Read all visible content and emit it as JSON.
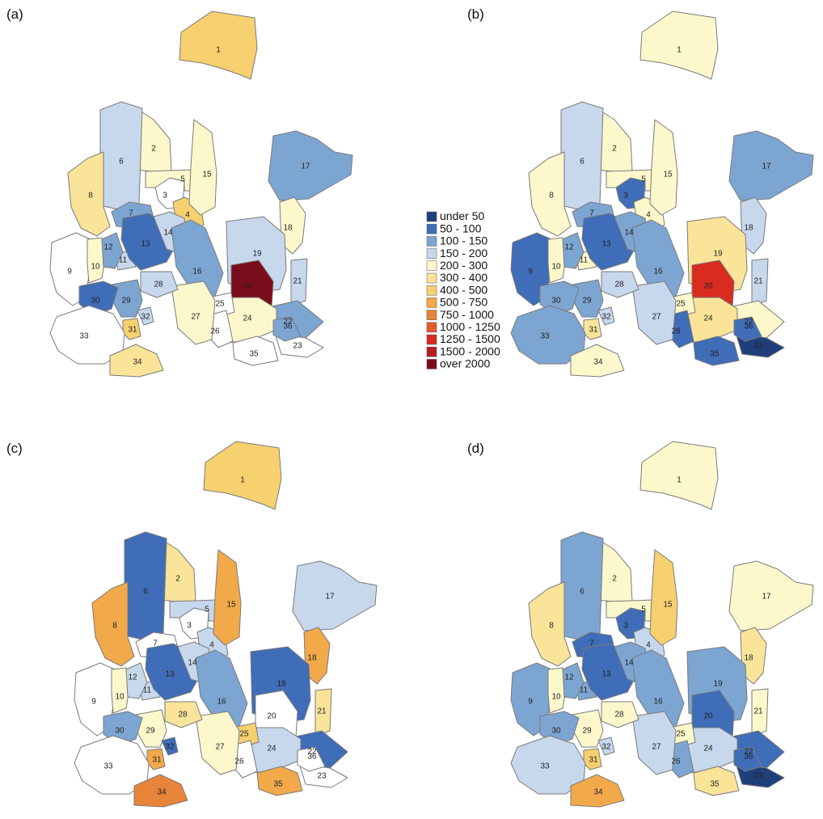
{
  "legend": {
    "classes": [
      {
        "label": "under 50",
        "color": "#1f3f7a"
      },
      {
        "label": "50 - 100",
        "color": "#3f6db8"
      },
      {
        "label": "100 - 150",
        "color": "#7da5d2"
      },
      {
        "label": "150 - 200",
        "color": "#c7d7ec"
      },
      {
        "label": "200 - 300",
        "color": "#fdf8cc"
      },
      {
        "label": "300 - 400",
        "color": "#f9e49a"
      },
      {
        "label": "400 - 500",
        "color": "#f7d06f"
      },
      {
        "label": "500 - 750",
        "color": "#f1a94a"
      },
      {
        "label": "750 - 1000",
        "color": "#e8833a"
      },
      {
        "label": "1000 - 1250",
        "color": "#e25a2b"
      },
      {
        "label": "1250 - 1500",
        "color": "#d92b1f"
      },
      {
        "label": "1500 - 2000",
        "color": "#b81d25"
      },
      {
        "label": "over 2000",
        "color": "#7a0d1c"
      }
    ],
    "none_color": "#ffffff"
  },
  "panels": [
    {
      "label": "(a)",
      "classes": {
        "1": 6,
        "2": 4,
        "3": -1,
        "4": 6,
        "5": 4,
        "6": 3,
        "7": 2,
        "8": 5,
        "9": -1,
        "10": 4,
        "11": 3,
        "12": 2,
        "13": 1,
        "14": 3,
        "15": 4,
        "16": 2,
        "17": 2,
        "18": 4,
        "19": 3,
        "20": 12,
        "21": 3,
        "22": 2,
        "23": -1,
        "24": 4,
        "25": -1,
        "26": -1,
        "27": 4,
        "28": 3,
        "29": 2,
        "30": 1,
        "31": 6,
        "32": 3,
        "33": -1,
        "34": 5,
        "35": -1,
        "36": 2
      }
    },
    {
      "label": "(b)",
      "classes": {
        "1": 4,
        "2": 4,
        "3": 1,
        "4": 4,
        "5": 4,
        "6": 3,
        "7": 2,
        "8": 4,
        "9": 1,
        "10": 4,
        "11": 4,
        "12": 2,
        "13": 1,
        "14": 2,
        "15": 4,
        "16": 2,
        "17": 2,
        "18": 3,
        "19": 5,
        "20": 10,
        "21": 3,
        "22": 4,
        "23": 0,
        "24": 5,
        "25": 4,
        "26": 1,
        "27": 3,
        "28": 3,
        "29": 2,
        "30": 2,
        "31": 5,
        "32": 3,
        "33": 2,
        "34": 4,
        "35": 1,
        "36": 1
      }
    },
    {
      "label": "(c)",
      "classes": {
        "1": 6,
        "2": 5,
        "3": -1,
        "4": 3,
        "5": 3,
        "6": 1,
        "7": -1,
        "8": 7,
        "9": -1,
        "10": 4,
        "11": 3,
        "12": 3,
        "13": 1,
        "14": 3,
        "15": 7,
        "16": 2,
        "17": 3,
        "18": 7,
        "19": 1,
        "20": -1,
        "21": 5,
        "22": 1,
        "23": -1,
        "24": 3,
        "25": 6,
        "26": -1,
        "27": 4,
        "28": 5,
        "29": 4,
        "30": 2,
        "31": 7,
        "32": 1,
        "33": -1,
        "34": 8,
        "35": 7,
        "36": -1
      }
    },
    {
      "label": "(d)",
      "classes": {
        "1": 4,
        "2": 4,
        "3": 1,
        "4": 3,
        "5": 4,
        "6": 2,
        "7": 1,
        "8": 5,
        "9": 2,
        "10": 4,
        "11": 2,
        "12": 2,
        "13": 1,
        "14": 2,
        "15": 6,
        "16": 2,
        "17": 4,
        "18": 5,
        "19": 2,
        "20": 1,
        "21": 4,
        "22": 1,
        "23": 0,
        "24": 3,
        "25": 4,
        "26": 2,
        "27": 3,
        "28": 4,
        "29": 4,
        "30": 2,
        "31": 6,
        "32": 3,
        "33": 3,
        "34": 7,
        "35": 5,
        "36": 1
      }
    }
  ]
}
